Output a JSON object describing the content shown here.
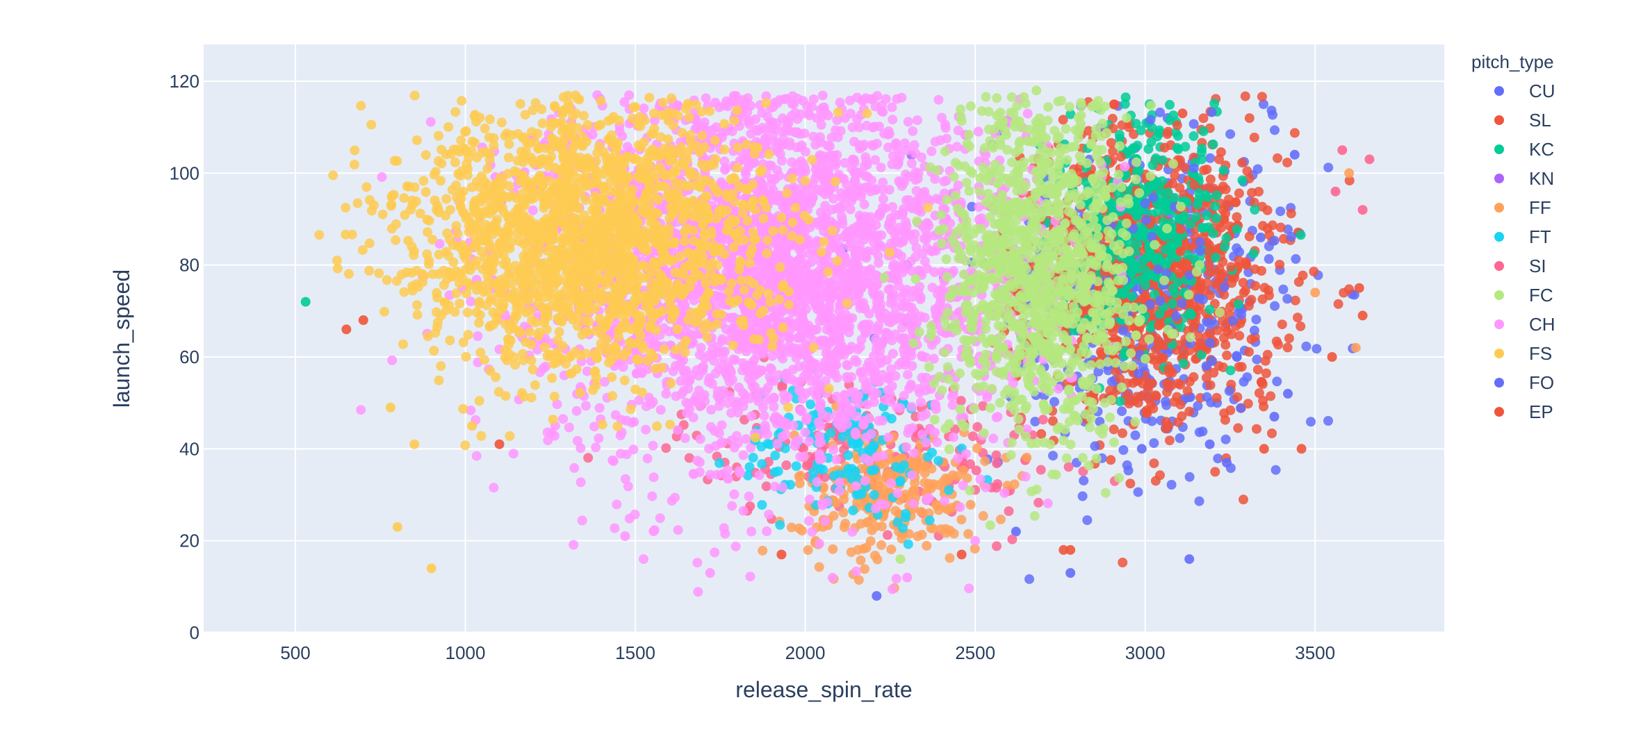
{
  "chart_data": {
    "type": "scatter",
    "title": "",
    "xlabel": "release_spin_rate",
    "ylabel": "launch_speed",
    "xlim": [
      230,
      3880
    ],
    "ylim": [
      0,
      128
    ],
    "xticks": [
      500,
      1000,
      1500,
      2000,
      2500,
      3000,
      3500
    ],
    "yticks": [
      0,
      20,
      40,
      60,
      80,
      100,
      120
    ],
    "grid": true,
    "legend": {
      "title": "pitch_type",
      "position": "right",
      "entries": [
        "CU",
        "SL",
        "KC",
        "KN",
        "FF",
        "FT",
        "SI",
        "FC",
        "CH",
        "FS",
        "FO",
        "EP"
      ]
    },
    "colors": {
      "plot_bg": "#E5ECF6",
      "grid": "#ffffff",
      "text": "#2a3f5f"
    },
    "series": [
      {
        "name": "CU",
        "color": "#636efa",
        "cluster": {
          "x_mean": 3000,
          "x_sd": 220,
          "y_mean": 75,
          "y_sd": 18
        },
        "points": [
          [
            3130,
            16
          ],
          [
            2210,
            8
          ],
          [
            2780,
            13
          ],
          [
            3440,
            104
          ],
          [
            3270,
            60
          ],
          [
            3380,
            47
          ],
          [
            3340,
            86
          ],
          [
            3190,
            41
          ],
          [
            3420,
            52
          ],
          [
            2990,
            40
          ],
          [
            2620,
            22
          ],
          [
            3010,
            111
          ]
        ]
      },
      {
        "name": "SL",
        "color": "#EF553B",
        "cluster": {
          "x_mean": 3030,
          "x_sd": 190,
          "y_mean": 77,
          "y_sd": 16
        },
        "points": [
          [
            650,
            66
          ],
          [
            700,
            68
          ],
          [
            3460,
            40
          ],
          [
            3550,
            60
          ],
          [
            3640,
            69
          ],
          [
            2760,
            18
          ],
          [
            1930,
            17
          ],
          [
            3110,
            113
          ],
          [
            3630,
            75
          ],
          [
            1100,
            41
          ]
        ]
      },
      {
        "name": "KC",
        "color": "#00cc96",
        "cluster": {
          "x_mean": 3000,
          "x_sd": 120,
          "y_mean": 88,
          "y_sd": 13
        },
        "points": [
          [
            530,
            72
          ],
          [
            3140,
            100
          ],
          [
            2960,
            105
          ]
        ]
      },
      {
        "name": "KN",
        "color": "#ab63fa",
        "cluster": {
          "x_mean": 2300,
          "x_sd": 20,
          "y_mean": 80,
          "y_sd": 10
        },
        "points": [
          [
            2300,
            80
          ]
        ]
      },
      {
        "name": "FF",
        "color": "#FFA15A",
        "cluster": {
          "x_mean": 2250,
          "x_sd": 140,
          "y_mean": 30,
          "y_sd": 7
        },
        "points": [
          [
            3600,
            100
          ],
          [
            3500,
            74
          ],
          [
            3620,
            62
          ]
        ]
      },
      {
        "name": "FT",
        "color": "#19d3f3",
        "cluster": {
          "x_mean": 2120,
          "x_sd": 160,
          "y_mean": 40,
          "y_sd": 8
        },
        "points": []
      },
      {
        "name": "SI",
        "color": "#FF6692",
        "cluster": {
          "x_mean": 2200,
          "x_sd": 280,
          "y_mean": 40,
          "y_sd": 8
        },
        "points": [
          [
            3660,
            103
          ],
          [
            3640,
            92
          ],
          [
            3580,
            105
          ],
          [
            3560,
            96
          ]
        ]
      },
      {
        "name": "FC",
        "color": "#B6E880",
        "cluster": {
          "x_mean": 2690,
          "x_sd": 140,
          "y_mean": 80,
          "y_sd": 19
        },
        "points": [
          [
            2280,
            16
          ],
          [
            2680,
            118
          ]
        ]
      },
      {
        "name": "CH",
        "color": "#FF97FF",
        "cluster": {
          "x_mean": 1920,
          "x_sd": 340,
          "y_mean": 78,
          "y_sd": 20
        },
        "points": [
          [
            1720,
            13
          ],
          [
            2300,
            12
          ],
          [
            2500,
            20
          ],
          [
            1470,
            21
          ]
        ]
      },
      {
        "name": "FS",
        "color": "#FECB52",
        "cluster": {
          "x_mean": 1360,
          "x_sd": 260,
          "y_mean": 86,
          "y_sd": 14
        },
        "points": [
          [
            900,
            14
          ],
          [
            800,
            23
          ],
          [
            850,
            41
          ],
          [
            780,
            49
          ],
          [
            1020,
            45
          ]
        ]
      },
      {
        "name": "FO",
        "color": "#636efa",
        "cluster": {
          "x_mean": 3100,
          "x_sd": 200,
          "y_mean": 72,
          "y_sd": 20
        },
        "points": [
          [
            3240,
            37
          ],
          [
            3180,
            58
          ]
        ]
      },
      {
        "name": "EP",
        "color": "#EF553B",
        "cluster": {
          "x_mean": 3030,
          "x_sd": 200,
          "y_mean": 75,
          "y_sd": 18
        },
        "points": [
          [
            3350,
            40
          ],
          [
            2780,
            18
          ],
          [
            2460,
            17
          ]
        ]
      }
    ]
  }
}
